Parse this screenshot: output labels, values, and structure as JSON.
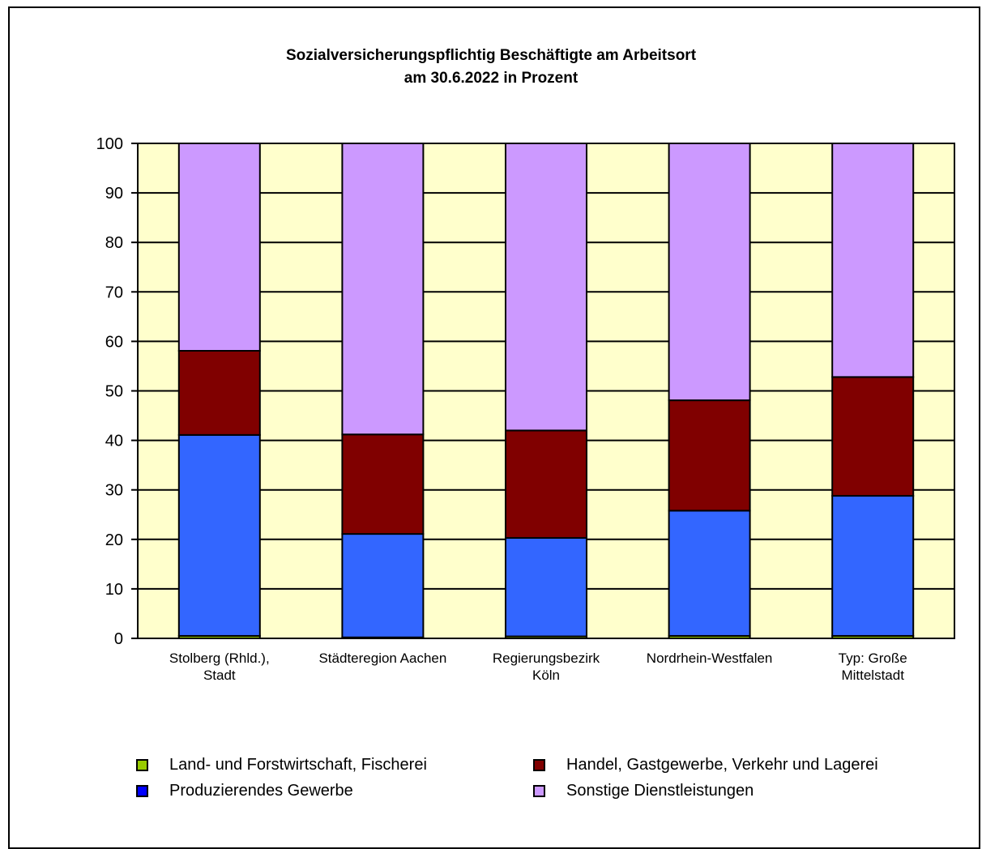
{
  "chart_data": {
    "type": "bar",
    "stacked": true,
    "title_lines": [
      "Sozialversicherungspflichtig Beschäftigte am Arbeitsort",
      "am 30.6.2022 in Prozent"
    ],
    "categories": [
      [
        "Stolberg (Rhld.),",
        "Stadt"
      ],
      [
        "Städteregion Aachen"
      ],
      [
        "Regierungsbezirk",
        "Köln"
      ],
      [
        "Nordrhein-Westfalen"
      ],
      [
        "Typ: Große",
        "Mittelstadt"
      ]
    ],
    "series": [
      {
        "name": "Land- und Forstwirtschaft, Fischerei",
        "color": "#99cc00",
        "values": [
          0.5,
          0.2,
          0.4,
          0.5,
          0.5
        ]
      },
      {
        "name": "Produzierendes Gewerbe",
        "color": "#3366ff",
        "values": [
          40.6,
          20.9,
          19.9,
          25.3,
          28.3
        ]
      },
      {
        "name": "Handel, Gastgewerbe, Verkehr und Lagerei",
        "color": "#800000",
        "values": [
          17.0,
          20.1,
          21.7,
          22.3,
          24.0
        ]
      },
      {
        "name": "Sonstige Dienstleistungen",
        "color": "#cc99ff",
        "values": [
          41.9,
          58.8,
          58.0,
          51.9,
          47.2
        ]
      }
    ],
    "legend_swatch_colors": [
      "#99cc00",
      "#0000ff",
      "#800000",
      "#cc99ff"
    ],
    "ylim": [
      0,
      100
    ],
    "yticks": [
      0,
      10,
      20,
      30,
      40,
      50,
      60,
      70,
      80,
      90,
      100
    ],
    "grid": true,
    "plot_background": "#ffffcc",
    "legend_position": "bottom"
  }
}
